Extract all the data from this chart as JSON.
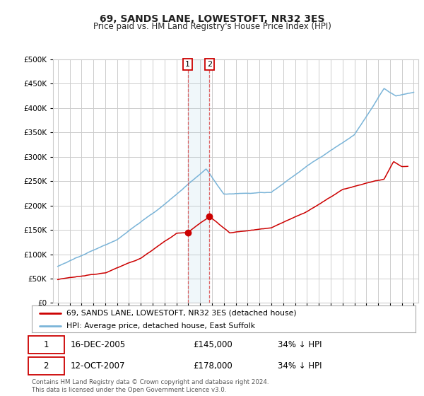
{
  "title": "69, SANDS LANE, LOWESTOFT, NR32 3ES",
  "subtitle": "Price paid vs. HM Land Registry's House Price Index (HPI)",
  "ytick_values": [
    0,
    50000,
    100000,
    150000,
    200000,
    250000,
    300000,
    350000,
    400000,
    450000,
    500000
  ],
  "xlim_start": 1994.6,
  "xlim_end": 2025.4,
  "ylim": [
    0,
    500000
  ],
  "hpi_color": "#7ab4d8",
  "price_color": "#cc0000",
  "transaction1": {
    "date_num": 2005.96,
    "value": 145000,
    "label": "1"
  },
  "transaction2": {
    "date_num": 2007.79,
    "value": 178000,
    "label": "2"
  },
  "legend_price_label": "69, SANDS LANE, LOWESTOFT, NR32 3ES (detached house)",
  "legend_hpi_label": "HPI: Average price, detached house, East Suffolk",
  "table_rows": [
    {
      "num": "1",
      "date": "16-DEC-2005",
      "price": "£145,000",
      "hpi": "34% ↓ HPI"
    },
    {
      "num": "2",
      "date": "12-OCT-2007",
      "price": "£178,000",
      "hpi": "34% ↓ HPI"
    }
  ],
  "footnote": "Contains HM Land Registry data © Crown copyright and database right 2024.\nThis data is licensed under the Open Government Licence v3.0.",
  "background_color": "#ffffff",
  "grid_color": "#cccccc",
  "fig_width": 6.0,
  "fig_height": 5.6,
  "dpi": 100
}
